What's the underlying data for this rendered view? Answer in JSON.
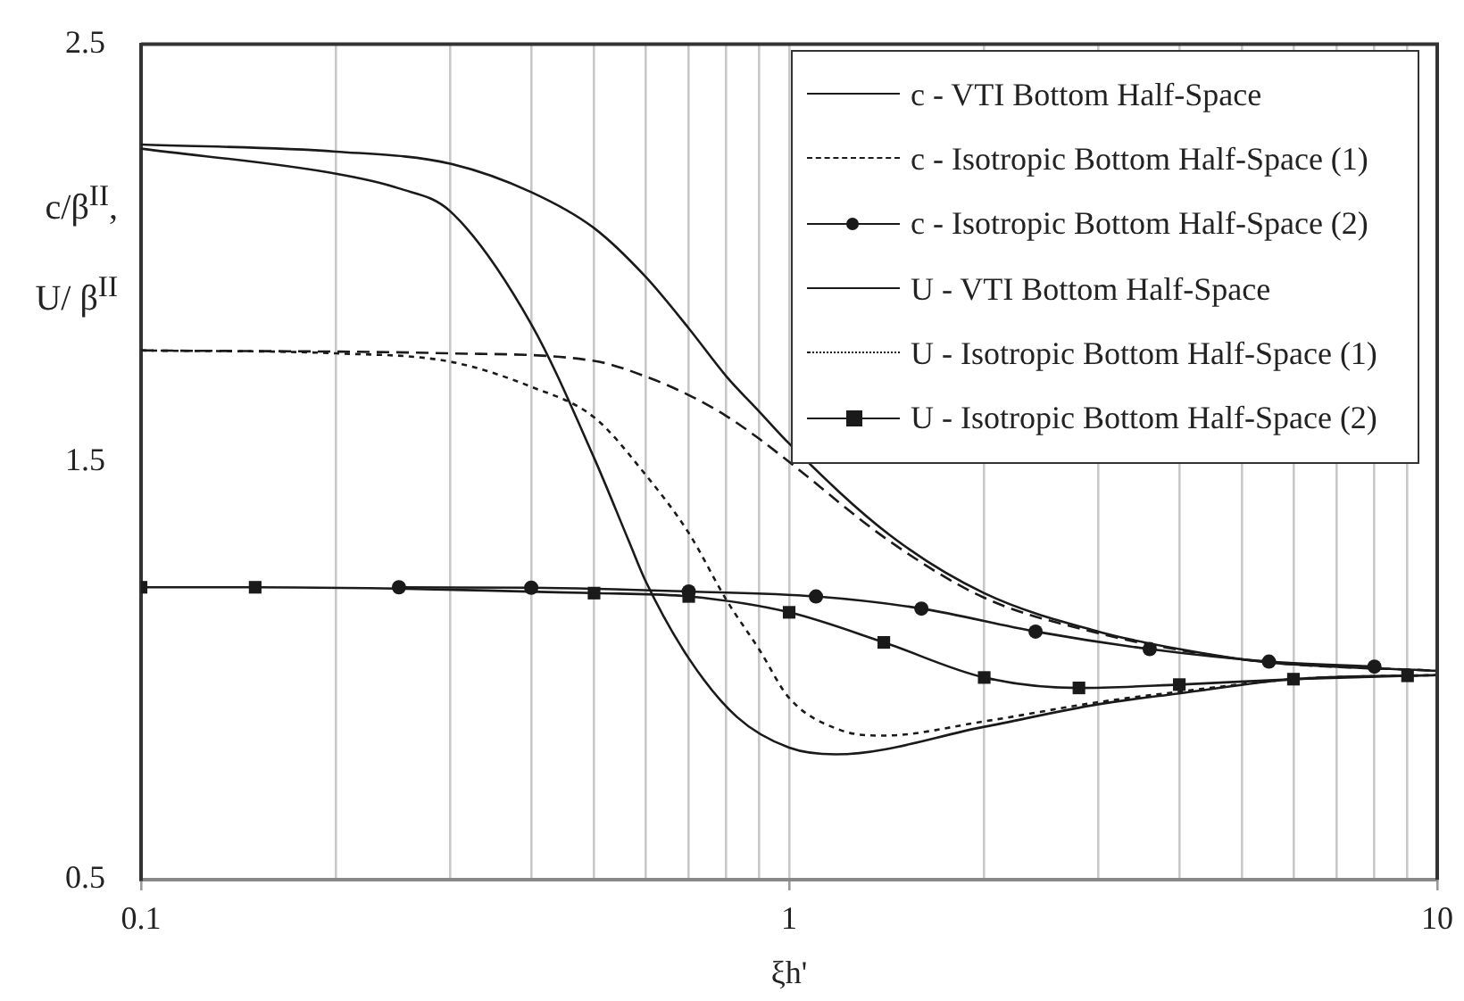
{
  "chart_data": {
    "type": "line",
    "xlabel": "ξh'",
    "ylabel": "c/β$^{II}$, U/ β$^{II}$",
    "log": "x",
    "grid": "x",
    "legend": "top right",
    "xlim": [
      0.1,
      10
    ],
    "xticks": [
      0.1,
      {
        "value": 0.2,
        "label": null
      },
      {
        "value": 0.3,
        "label": null
      },
      {
        "value": 0.4,
        "label": null
      },
      {
        "value": 0.5,
        "label": null
      },
      {
        "value": 0.6,
        "label": null
      },
      {
        "value": 0.7,
        "label": null
      },
      {
        "value": 0.8,
        "label": null
      },
      {
        "value": 0.9,
        "label": null
      },
      1,
      {
        "value": 2,
        "label": null
      },
      {
        "value": 3,
        "label": null
      },
      {
        "value": 4,
        "label": null
      },
      {
        "value": 5,
        "label": null
      },
      {
        "value": 6,
        "label": null
      },
      {
        "value": 7,
        "label": null
      },
      {
        "value": 8,
        "label": null
      },
      {
        "value": 9,
        "label": null
      },
      10
    ],
    "ylim": [
      0.5,
      2.5
    ],
    "yticks": [
      0.5,
      1.5,
      2.5
    ],
    "series": [
      {
        "name": "c - VTI Bottom Half-Space",
        "color": "#1a1a1a",
        "line_style": "solid",
        "marker": "none",
        "x": [
          0.1,
          0.2,
          0.3,
          0.4,
          0.5,
          0.6,
          0.7,
          0.8,
          0.9,
          1,
          1.43,
          2,
          3,
          4,
          5.5,
          10
        ],
        "values": [
          2.26,
          2.243,
          2.214,
          2.146,
          2.06,
          1.944,
          1.82,
          1.705,
          1.62,
          1.544,
          1.325,
          1.186,
          1.094,
          1.052,
          1.02,
          1.0
        ]
      },
      {
        "name": "c - Isotropic Bottom Half-Space (1)",
        "color": "#1a1a1a",
        "line_style": "dashed",
        "marker": "none",
        "x": [
          0.1,
          0.3,
          0.5,
          0.6,
          0.7,
          0.8,
          0.9,
          1,
          1.43,
          2,
          3,
          4,
          5.5,
          10
        ],
        "values": [
          1.767,
          1.76,
          1.742,
          1.705,
          1.66,
          1.61,
          1.555,
          1.5,
          1.31,
          1.175,
          1.09,
          1.05,
          1.02,
          1.0
        ]
      },
      {
        "name": "c - Isotropic Bottom Half-Space (2)",
        "color": "#1a1a1a",
        "line_style": "solid",
        "marker": "circle",
        "x": [
          0.25,
          0.4,
          0.7,
          1.1,
          1.6,
          2.4,
          3.6,
          5.5,
          8
        ],
        "values": [
          1.2,
          1.199,
          1.19,
          1.178,
          1.149,
          1.094,
          1.052,
          1.022,
          1.01
        ]
      },
      {
        "name": "U - VTI Bottom Half-Space",
        "color": "#1a1a1a",
        "line_style": "solid",
        "marker": "none",
        "x": [
          0.1,
          0.2,
          0.25,
          0.3,
          0.4,
          0.5,
          0.566,
          0.6,
          0.7,
          0.83,
          1,
          1.18,
          2,
          3,
          4,
          6,
          10
        ],
        "values": [
          2.25,
          2.19,
          2.155,
          2.1,
          1.83,
          1.51,
          1.31,
          1.216,
          1.03,
          0.89,
          0.816,
          0.8,
          0.866,
          0.92,
          0.946,
          0.98,
          0.99
        ]
      },
      {
        "name": "U - Isotropic Bottom Half-Space (1)",
        "color": "#1a1a1a",
        "line_style": "dotted",
        "marker": "none",
        "x": [
          0.1,
          0.2,
          0.3,
          0.4,
          0.5,
          0.6,
          0.7,
          0.8,
          0.9,
          1,
          1.2,
          1.4,
          2,
          3,
          4,
          6,
          10
        ],
        "values": [
          1.767,
          1.76,
          1.74,
          1.68,
          1.607,
          1.47,
          1.33,
          1.17,
          1.05,
          0.935,
          0.858,
          0.845,
          0.879,
          0.925,
          0.95,
          0.98,
          0.99
        ]
      },
      {
        "name": "U - Isotropic Bottom Half-Space (2)",
        "color": "#1a1a1a",
        "line_style": "solid",
        "marker": "square",
        "x": [
          0.1,
          0.15,
          0.5,
          0.7,
          1,
          1.4,
          2,
          2.8,
          4,
          6,
          9
        ],
        "values": [
          1.2,
          1.2,
          1.186,
          1.178,
          1.14,
          1.068,
          0.984,
          0.959,
          0.967,
          0.98,
          0.988
        ]
      }
    ]
  }
}
